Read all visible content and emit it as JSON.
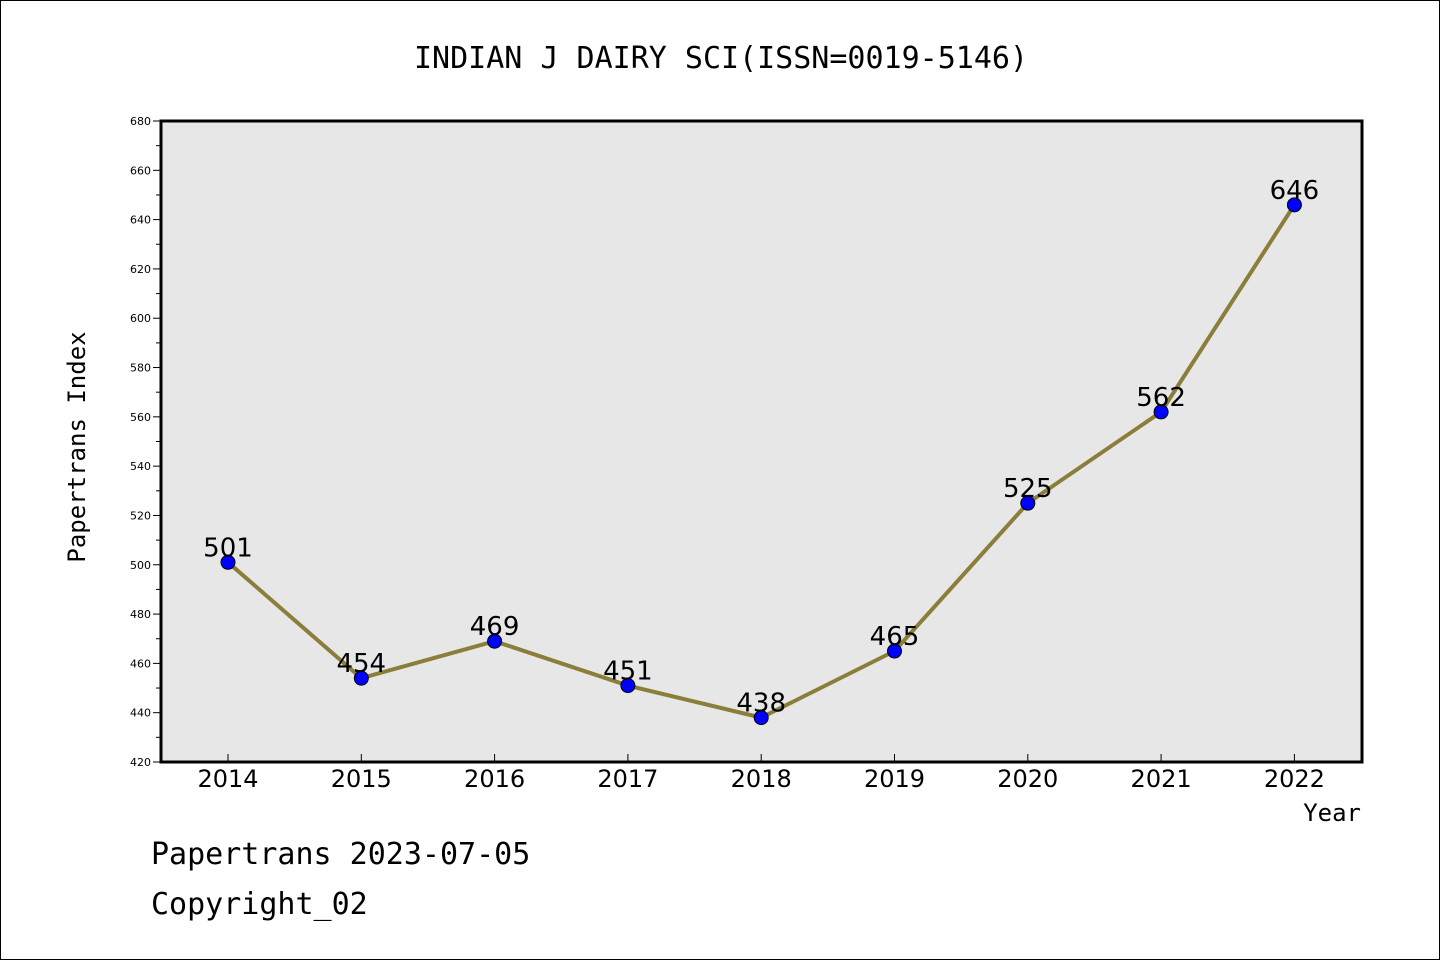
{
  "chart_data": {
    "type": "line",
    "title": "INDIAN J DAIRY SCI(ISSN=0019-5146)",
    "xlabel": "Year",
    "ylabel": "Papertrans Index",
    "categories": [
      "2014",
      "2015",
      "2016",
      "2017",
      "2018",
      "2019",
      "2020",
      "2021",
      "2022"
    ],
    "series": [
      {
        "values": [
          501,
          454,
          469,
          451,
          438,
          465,
          525,
          562,
          646
        ]
      }
    ],
    "ylim": [
      420,
      680
    ],
    "ytick_step": 20,
    "yticks": [
      "420",
      "440",
      "460",
      "480",
      "500",
      "520",
      "540",
      "560",
      "580",
      "600",
      "620",
      "640",
      "660",
      "680"
    ],
    "grid": false,
    "plot_background": "#e7e7e7",
    "line_color": "#8b7d3a",
    "marker_color": "#0000ff"
  },
  "footer": {
    "line1": "Papertrans 2023-07-05",
    "line2": "Copyright_02"
  }
}
